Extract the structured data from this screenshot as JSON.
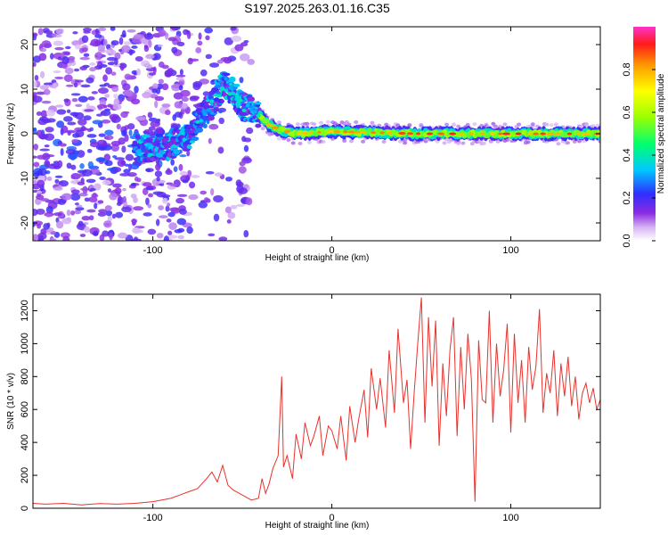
{
  "figure": {
    "title": "S197.2025.263.01.16.C35"
  },
  "chart_data": [
    {
      "type": "heatmap",
      "title": "",
      "xlabel": "Height of straight line (km)",
      "ylabel": "Frequency (Hz)",
      "xlim": [
        -167,
        150
      ],
      "ylim": [
        -24,
        24
      ],
      "xticks": [
        -100,
        0,
        100
      ],
      "yticks": [
        -20,
        -10,
        0,
        10,
        20
      ],
      "colorbar": {
        "label": "Normalized spectral amplitude",
        "range": [
          0,
          1
        ],
        "ticks": [
          0.0,
          0.2,
          0.4,
          0.6,
          0.8
        ]
      },
      "ridge": [
        {
          "x": -100,
          "f": -3
        },
        {
          "x": -90,
          "f": -2.5
        },
        {
          "x": -80,
          "f": -1
        },
        {
          "x": -75,
          "f": 3
        },
        {
          "x": -70,
          "f": 5
        },
        {
          "x": -65,
          "f": 8
        },
        {
          "x": -60,
          "f": 11
        },
        {
          "x": -55,
          "f": 9
        },
        {
          "x": -50,
          "f": 6
        },
        {
          "x": -45,
          "f": 6
        },
        {
          "x": -40,
          "f": 4
        },
        {
          "x": -35,
          "f": 2
        },
        {
          "x": -30,
          "f": 1
        },
        {
          "x": -20,
          "f": 0
        },
        {
          "x": 0,
          "f": 0.5
        },
        {
          "x": 50,
          "f": 0
        },
        {
          "x": 100,
          "f": 0
        },
        {
          "x": 150,
          "f": 0
        }
      ]
    },
    {
      "type": "line",
      "title": "",
      "xlabel": "Height of straight line (km)",
      "ylabel": "SNR (10 * v/v)",
      "xlim": [
        -167,
        150
      ],
      "ylim": [
        0,
        1300
      ],
      "xticks": [
        -100,
        0,
        100
      ],
      "yticks": [
        0,
        200,
        400,
        600,
        800,
        1000,
        1200
      ],
      "color": "#e8322c",
      "series": [
        {
          "name": "SNR",
          "x": [
            -167,
            -160,
            -150,
            -140,
            -130,
            -120,
            -110,
            -100,
            -95,
            -90,
            -85,
            -80,
            -75,
            -70,
            -67,
            -64,
            -61,
            -58,
            -55,
            -50,
            -45,
            -41,
            -39,
            -37,
            -35,
            -33,
            -30,
            -28,
            -27,
            -25,
            -22,
            -20,
            -17,
            -15,
            -12,
            -10,
            -7,
            -5,
            -2,
            0,
            3,
            5,
            8,
            10,
            13,
            15,
            18,
            20,
            22,
            25,
            27,
            30,
            32,
            35,
            37,
            40,
            42,
            44,
            46,
            48,
            50,
            52,
            54,
            56,
            58,
            60,
            62,
            64,
            66,
            68,
            70,
            72,
            74,
            76,
            78,
            80,
            82,
            84,
            86,
            88,
            90,
            92,
            94,
            96,
            98,
            100,
            102,
            104,
            106,
            108,
            110,
            112,
            114,
            116,
            118,
            120,
            122,
            124,
            126,
            128,
            130,
            132,
            134,
            136,
            138,
            140,
            142,
            144,
            146,
            148,
            150
          ],
          "values": [
            30,
            25,
            30,
            20,
            28,
            25,
            30,
            40,
            50,
            60,
            80,
            100,
            120,
            180,
            220,
            160,
            260,
            140,
            110,
            80,
            50,
            60,
            180,
            90,
            150,
            240,
            320,
            800,
            250,
            320,
            180,
            450,
            300,
            520,
            380,
            440,
            560,
            320,
            500,
            470,
            360,
            560,
            290,
            620,
            400,
            540,
            720,
            430,
            850,
            600,
            790,
            490,
            960,
            580,
            1090,
            640,
            780,
            360,
            700,
            1000,
            1280,
            520,
            1160,
            740,
            1140,
            380,
            880,
            560,
            960,
            1160,
            440,
            980,
            600,
            1060,
            780,
            40,
            1020,
            660,
            640,
            1200,
            520,
            1000,
            680,
            840,
            1120,
            460,
            1060,
            640,
            900,
            520,
            980,
            720,
            860,
            1210,
            580,
            820,
            700,
            960,
            560,
            880,
            680,
            920,
            620,
            800,
            540,
            700,
            760,
            640,
            730,
            600,
            660
          ]
        }
      ]
    }
  ]
}
